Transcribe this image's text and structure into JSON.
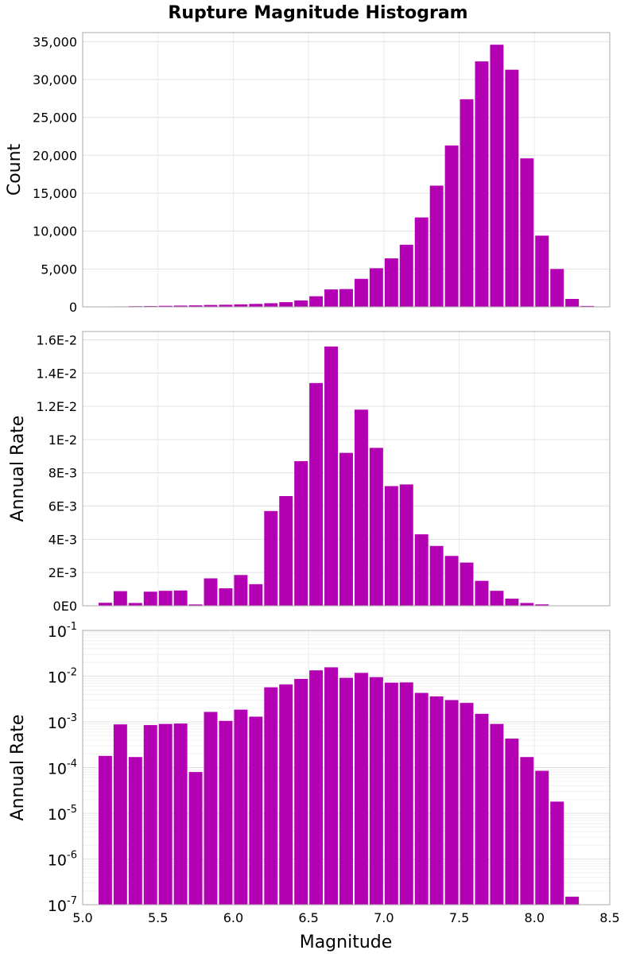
{
  "chart_data": {
    "title": "Rupture Magnitude Histogram",
    "xlabel": "Magnitude",
    "xlim": [
      5.0,
      8.5
    ],
    "x_ticks": [
      5.0,
      5.5,
      6.0,
      6.5,
      7.0,
      7.5,
      8.0,
      8.5
    ],
    "x_tick_labels": [
      "5.0",
      "5.5",
      "6.0",
      "6.5",
      "7.0",
      "7.5",
      "8.0",
      "8.5"
    ],
    "bar_color": "#b300b3",
    "grid": true,
    "bin_width": 0.1,
    "bin_centers": [
      5.15,
      5.25,
      5.35,
      5.45,
      5.55,
      5.65,
      5.75,
      5.85,
      5.95,
      6.05,
      6.15,
      6.25,
      6.35,
      6.45,
      6.55,
      6.65,
      6.75,
      6.85,
      6.95,
      7.05,
      7.15,
      7.25,
      7.35,
      7.45,
      7.55,
      7.65,
      7.75,
      7.85,
      7.95,
      8.05,
      8.15,
      8.25,
      8.35
    ],
    "panels": [
      {
        "type": "bar",
        "ylabel": "Count",
        "scale": "linear",
        "ylim": [
          0,
          36200
        ],
        "y_ticks": [
          0,
          5000,
          10000,
          15000,
          20000,
          25000,
          30000,
          35000
        ],
        "y_tick_labels": [
          "0",
          "5,000",
          "10,000",
          "15,000",
          "20,000",
          "25,000",
          "30,000",
          "35,000"
        ],
        "values": [
          30,
          60,
          90,
          110,
          140,
          170,
          200,
          250,
          280,
          330,
          390,
          480,
          620,
          850,
          1400,
          2300,
          2350,
          3700,
          5100,
          6400,
          8200,
          11800,
          16000,
          21300,
          27400,
          32400,
          34600,
          31300,
          19600,
          9400,
          5000,
          1050,
          120
        ]
      },
      {
        "type": "bar",
        "ylabel": "Annual Rate",
        "scale": "linear",
        "ylim": [
          0,
          0.0165
        ],
        "y_ticks": [
          0,
          0.002,
          0.004,
          0.006,
          0.008,
          0.01,
          0.012,
          0.014,
          0.016
        ],
        "y_tick_labels": [
          "0E0",
          "2E-3",
          "4E-3",
          "6E-3",
          "8E-3",
          "1E-2",
          "1.2E-2",
          "1.4E-2",
          "1.6E-2"
        ],
        "values": [
          0.00018,
          0.00088,
          0.00017,
          0.00085,
          0.0009,
          0.00092,
          8e-05,
          0.00165,
          0.00105,
          0.00185,
          0.0013,
          0.0057,
          0.0066,
          0.0087,
          0.0134,
          0.0156,
          0.0092,
          0.0118,
          0.0095,
          0.0072,
          0.0073,
          0.0043,
          0.0036,
          0.003,
          0.0026,
          0.0015,
          0.0009,
          0.00043,
          0.00017,
          8.5e-05,
          1.8e-05,
          1.5e-07,
          0
        ]
      },
      {
        "type": "bar",
        "ylabel": "Annual Rate",
        "scale": "log",
        "ylim": [
          1e-07,
          0.1
        ],
        "y_ticks": [
          1e-07,
          1e-06,
          1e-05,
          0.0001,
          0.001,
          0.01,
          0.1
        ],
        "y_tick_labels": [
          {
            "base": "10",
            "exp": "-7"
          },
          {
            "base": "10",
            "exp": "-6"
          },
          {
            "base": "10",
            "exp": "-5"
          },
          {
            "base": "10",
            "exp": "-4"
          },
          {
            "base": "10",
            "exp": "-3"
          },
          {
            "base": "10",
            "exp": "-2"
          },
          {
            "base": "10",
            "exp": "-1"
          }
        ],
        "values": [
          0.00018,
          0.00088,
          0.00017,
          0.00085,
          0.0009,
          0.00092,
          8e-05,
          0.00165,
          0.00105,
          0.00185,
          0.0013,
          0.0057,
          0.0066,
          0.0087,
          0.0134,
          0.0156,
          0.0092,
          0.0118,
          0.0095,
          0.0072,
          0.0073,
          0.0043,
          0.0036,
          0.003,
          0.0026,
          0.0015,
          0.0009,
          0.00043,
          0.00017,
          8.5e-05,
          1.8e-05,
          1.5e-07,
          0
        ]
      }
    ]
  }
}
